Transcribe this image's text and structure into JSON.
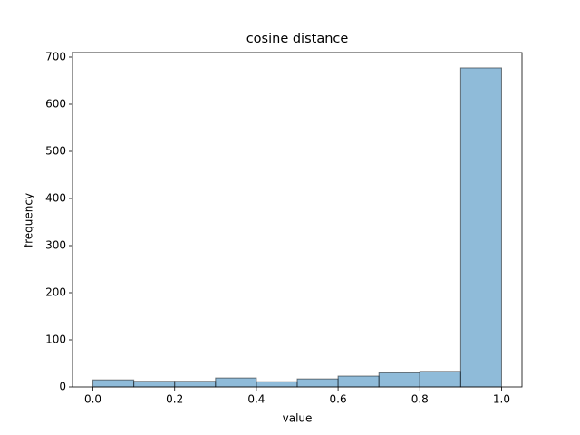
{
  "chart_data": {
    "type": "histogram",
    "title": "cosine distance",
    "x_label": "value",
    "y_label": "frequency",
    "bins": [
      0,
      0.1,
      0.2,
      0.3,
      0.4,
      0.5,
      0.6,
      0.7,
      0.8,
      0.9,
      1.0
    ],
    "values": [
      15,
      12,
      12,
      19,
      11,
      17,
      23,
      30,
      33,
      677
    ],
    "color": "#1f77b4",
    "opacity": 0.5,
    "edgecolor": "#000000",
    "xlim": [
      -0.05,
      1.05
    ],
    "ylim": [
      0,
      709.6
    ],
    "xticks": [
      {
        "value": 0,
        "label": "0.0"
      },
      0.2,
      0.4,
      0.6,
      0.8,
      {
        "value": 1,
        "label": "1.0"
      }
    ],
    "yticks": [
      0,
      100,
      200,
      300,
      400,
      500,
      600,
      700
    ],
    "grid": false
  }
}
